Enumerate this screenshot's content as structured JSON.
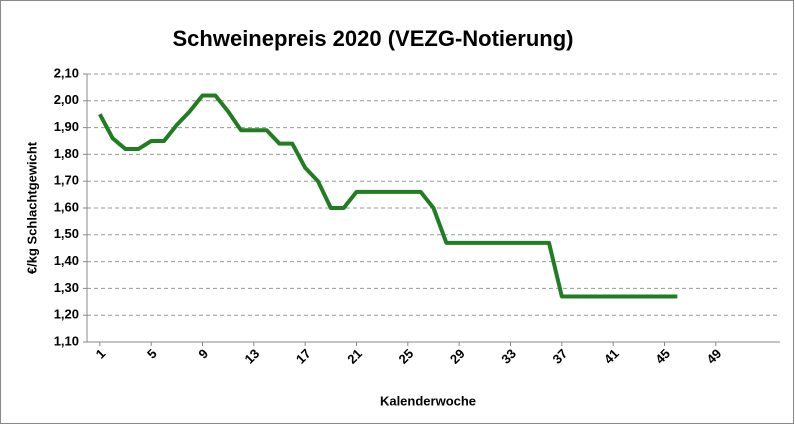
{
  "chart_data": {
    "type": "line",
    "title": "Schweinepreis 2020 (VEZG-Notierung)",
    "x_label": "Kalenderwoche",
    "y_label": "€/kg Schlachtgewicht",
    "x": [
      1,
      2,
      3,
      4,
      5,
      6,
      7,
      8,
      9,
      10,
      11,
      12,
      13,
      14,
      15,
      16,
      17,
      18,
      19,
      20,
      21,
      22,
      23,
      24,
      25,
      26,
      27,
      28,
      29,
      30,
      31,
      32,
      33,
      34,
      35,
      36,
      37,
      38,
      39,
      40,
      41,
      42,
      43,
      44,
      45,
      46
    ],
    "values": [
      1.95,
      1.86,
      1.82,
      1.82,
      1.85,
      1.85,
      1.91,
      1.96,
      2.02,
      2.02,
      1.96,
      1.89,
      1.89,
      1.89,
      1.84,
      1.84,
      1.75,
      1.7,
      1.6,
      1.6,
      1.66,
      1.66,
      1.66,
      1.66,
      1.66,
      1.66,
      1.6,
      1.47,
      1.47,
      1.47,
      1.47,
      1.47,
      1.47,
      1.47,
      1.47,
      1.47,
      1.27,
      1.27,
      1.27,
      1.27,
      1.27,
      1.27,
      1.27,
      1.27,
      1.27,
      1.27
    ],
    "color": "#217d21",
    "xlim": [
      0,
      54
    ],
    "xticks": [
      1,
      5,
      9,
      13,
      17,
      21,
      25,
      29,
      33,
      37,
      41,
      45,
      49
    ],
    "ylim": [
      1.1,
      2.1
    ],
    "yticks": [
      {
        "value": 1.1,
        "label": "1,10"
      },
      {
        "value": 1.2,
        "label": "1,20"
      },
      {
        "value": 1.3,
        "label": "1,30"
      },
      {
        "value": 1.4,
        "label": "1,40"
      },
      {
        "value": 1.5,
        "label": "1,50"
      },
      {
        "value": 1.6,
        "label": "1,60"
      },
      {
        "value": 1.7,
        "label": "1,70"
      },
      {
        "value": 1.8,
        "label": "1,80"
      },
      {
        "value": 1.9,
        "label": "1,90"
      },
      {
        "value": 2.0,
        "label": "2,00"
      },
      {
        "value": 2.1,
        "label": "2,10"
      }
    ],
    "grid": true
  }
}
